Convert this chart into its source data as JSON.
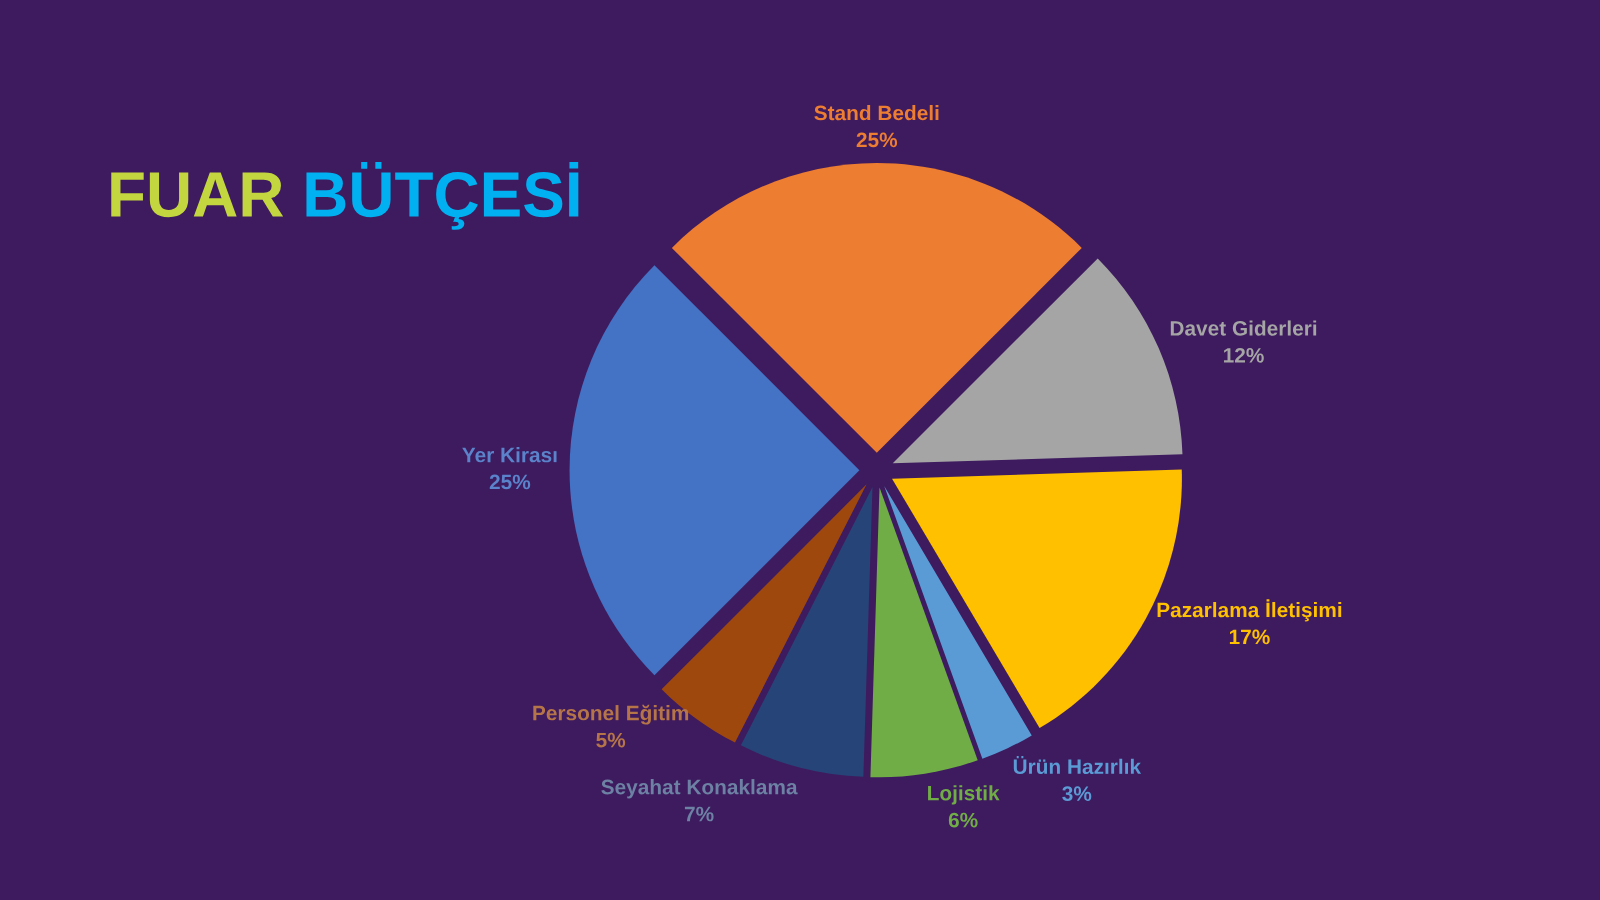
{
  "chart_data": {
    "type": "pie",
    "title": "FUAR BÜTÇESİ",
    "categories": [
      "Stand Bedeli",
      "Davet Giderleri",
      "Pazarlama İletişimi",
      "Ürün Hazırlık",
      "Lojistik",
      "Seyahat Konaklama",
      "Personel Eğitim",
      "Yer Kirası"
    ],
    "values": [
      25,
      12,
      17,
      3,
      6,
      7,
      5,
      25
    ],
    "value_labels": [
      "25%",
      "12%",
      "17%",
      "3%",
      "6%",
      "7%",
      "5%",
      "25%"
    ],
    "colors": [
      "#ed7d31",
      "#a5a5a5",
      "#ffc000",
      "#5b9bd5",
      "#70ad47",
      "#264478",
      "#9e480e",
      "#4472c4"
    ],
    "legend": false
  }
}
